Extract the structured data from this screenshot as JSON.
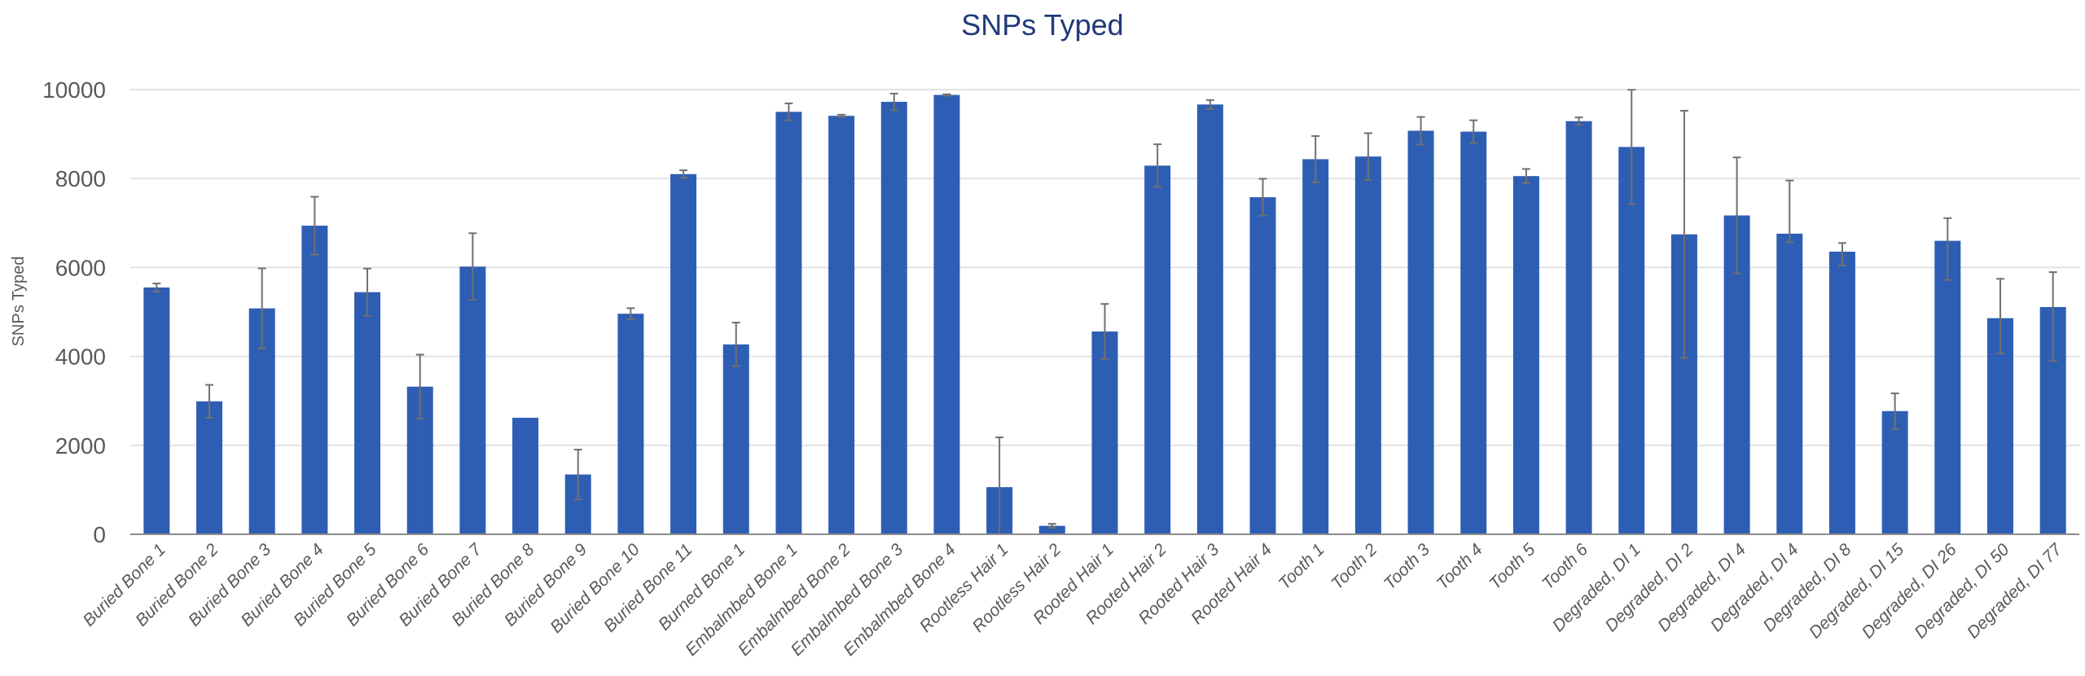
{
  "chart_data": {
    "type": "bar",
    "title": "SNPs Typed",
    "xlabel": "",
    "ylabel": "SNPs Typed",
    "ylim": [
      0,
      10000
    ],
    "yticks": [
      0,
      2000,
      4000,
      6000,
      8000,
      10000
    ],
    "grid": true,
    "legend": null,
    "error_bars": true,
    "bar_color": "#2e5eb4",
    "error_bar_color": "#707070",
    "gridline_color": "#e2e2e2",
    "title_color": "#1f3a7a",
    "label_color": "#595959",
    "categories": [
      "Buried Bone 1",
      "Buried Bone 2",
      "Buried Bone 3",
      "Buried Bone 4",
      "Buried Bone 5",
      "Buried Bone 6",
      "Buried Bone 7",
      "Buried Bone 8",
      "Buried Bone 9",
      "Buried Bone 10",
      "Buried Bone 11",
      "Burned Bone 1",
      "Embalmbed Bone 1",
      "Embalmbed Bone 2",
      "Embalmbed Bone 3",
      "Embalmbed Bone 4",
      "Rootless Hair 1",
      "Rootless Hair 2",
      "Rooted Hair 1",
      "Rooted Hair 2",
      "Rooted Hair 3",
      "Rooted Hair 4",
      "Tooth 1",
      "Tooth 2",
      "Tooth 3",
      "Tooth 4",
      "Tooth 5",
      "Tooth 6",
      "Degraded, DI 1",
      "Degraded, DI 2",
      "Degraded, DI 4",
      "Degraded, DI 4",
      "Degraded, DI 8",
      "Degraded, DI 15",
      "Degraded, DI 26",
      "Degraded, DI 50",
      "Degraded, DI 77"
    ],
    "series": [
      {
        "name": "SNPs Typed",
        "values": [
          5550,
          2990,
          5080,
          6940,
          5445,
          3320,
          6020,
          2620,
          1345,
          4960,
          8100,
          4270,
          9500,
          9410,
          9725,
          9880,
          1060,
          190,
          4560,
          8290,
          9665,
          7580,
          8435,
          8495,
          9075,
          9055,
          8055,
          9290,
          8710,
          6745,
          7170,
          6760,
          6355,
          2770,
          6600,
          4860,
          5110
        ],
        "error_low": [
          5460,
          2620,
          4180,
          6290,
          4915,
          2600,
          5275,
          null,
          785,
          4835,
          8015,
          3780,
          9310,
          9385,
          9540,
          9865,
          0,
          145,
          3940,
          7810,
          9565,
          7165,
          7915,
          7965,
          8765,
          8800,
          7895,
          9205,
          7425,
          3965,
          5865,
          6565,
          6045,
          2365,
          5720,
          4065,
          3900
        ],
        "error_high": [
          5640,
          3360,
          5980,
          7590,
          5975,
          4040,
          6770,
          null,
          1905,
          5085,
          8185,
          4760,
          9690,
          9435,
          9910,
          9895,
          2180,
          235,
          5180,
          8770,
          9765,
          7995,
          8955,
          9020,
          9385,
          9310,
          8215,
          9375,
          9995,
          9525,
          8475,
          7955,
          6550,
          3170,
          7110,
          5745,
          5895
        ]
      }
    ]
  }
}
